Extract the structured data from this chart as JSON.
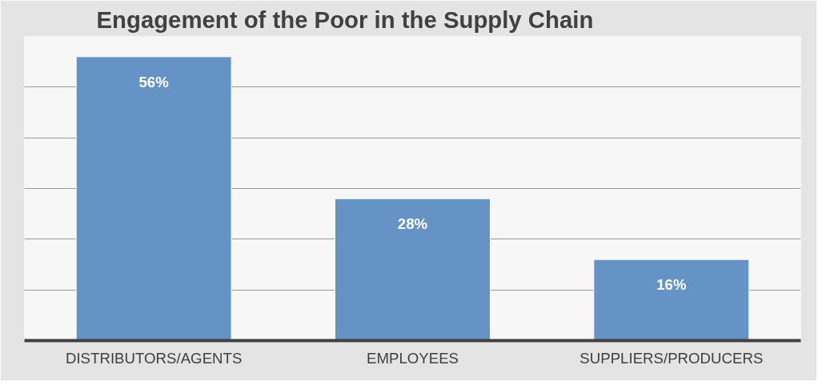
{
  "chart_data": {
    "type": "bar",
    "title": "Engagement of the Poor in the Supply Chain",
    "categories": [
      "DISTRIBUTORS/AGENTS",
      "EMPLOYEES",
      "SUPPLIERS/PRODUCERS"
    ],
    "values": [
      56,
      28,
      16
    ],
    "color": "#6693c6",
    "value_labels": [
      "56%",
      "28%",
      "16%"
    ],
    "ylim": [
      0,
      60
    ],
    "yticks": [
      {
        "value": 0,
        "label": null
      },
      {
        "value": 10,
        "label": null
      },
      {
        "value": 20,
        "label": null
      },
      {
        "value": 30,
        "label": null
      },
      {
        "value": 40,
        "label": null
      },
      {
        "value": 50,
        "label": null
      },
      {
        "value": 60,
        "label": null
      }
    ],
    "grid": "y",
    "tick_labels": "x"
  }
}
